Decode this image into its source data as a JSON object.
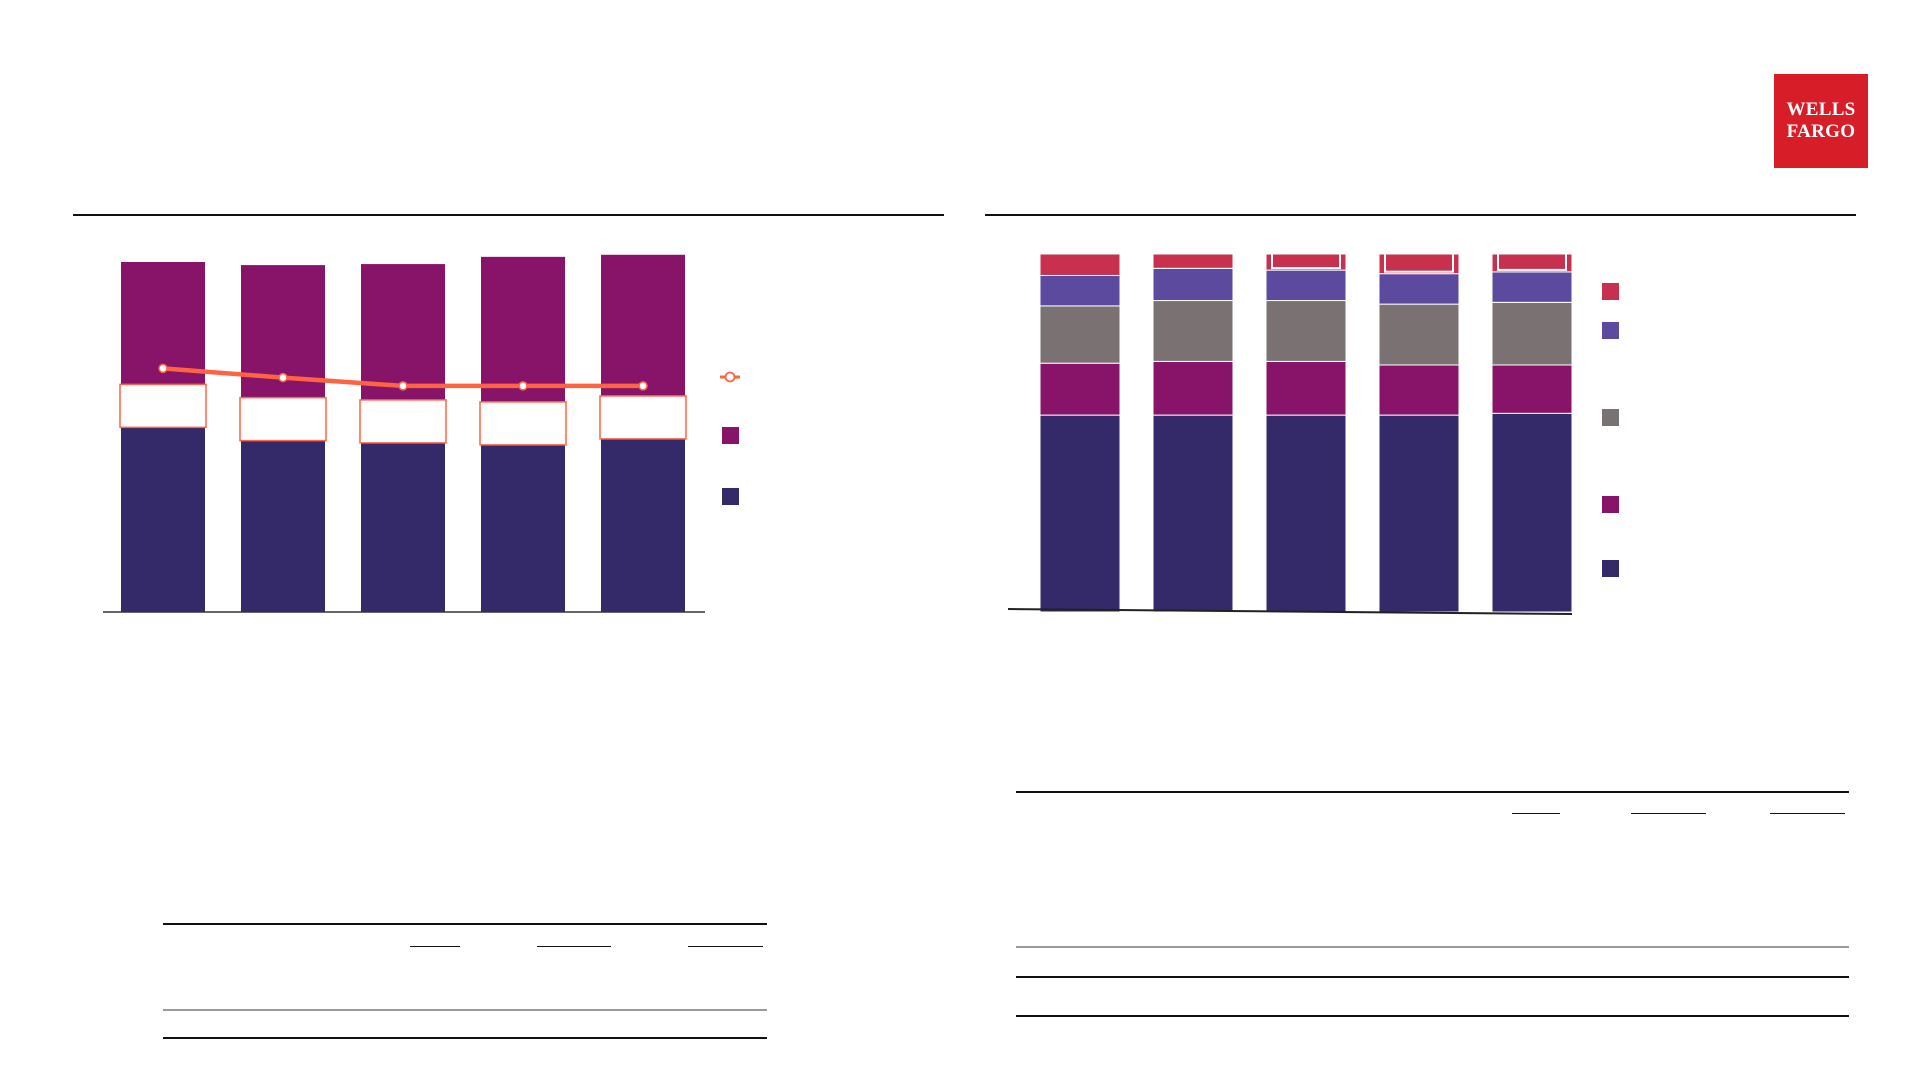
{
  "logo": {
    "line1": "WELLS",
    "line2": "FARGO",
    "color": "#d71e28"
  },
  "colors": {
    "navy": "#342a69",
    "magenta": "#871468",
    "grey": "#7a7272",
    "purple": "#5b4a9e",
    "red": "#c8314e",
    "line": "#ff6442"
  },
  "chart_data": [
    {
      "type": "bar",
      "stacked": true,
      "categories": [
        "",
        "",
        "",
        "",
        ""
      ],
      "series": [
        {
          "color": "#342a69",
          "values": [
            196,
            198,
            199,
            204,
            207
          ]
        },
        {
          "color": "#871468",
          "values": [
            143,
            138,
            138,
            140,
            139
          ]
        }
      ],
      "line_series": {
        "color": "#ff6442",
        "values": [
          236,
          227,
          219,
          219,
          219
        ],
        "marker": "circle"
      },
      "ylim": [
        0,
        370
      ],
      "legend": "right",
      "grid": false
    },
    {
      "type": "bar",
      "stacked": true,
      "normalized": true,
      "categories": [
        "",
        "",
        "",
        "",
        ""
      ],
      "series": [
        {
          "color": "#342a69",
          "values": [
            55,
            55,
            55,
            55,
            55.5
          ]
        },
        {
          "color": "#871468",
          "values": [
            14.5,
            15,
            15,
            14,
            13.5
          ]
        },
        {
          "color": "#7a7272",
          "values": [
            16,
            17,
            17,
            17,
            17.5
          ]
        },
        {
          "color": "#5b4a9e",
          "values": [
            8.5,
            9,
            8.5,
            8.5,
            8.5
          ]
        },
        {
          "color": "#c8314e",
          "values": [
            6,
            4,
            4.5,
            5.5,
            5
          ]
        }
      ],
      "ylim": [
        0,
        100
      ],
      "legend": "right",
      "grid": false
    }
  ]
}
